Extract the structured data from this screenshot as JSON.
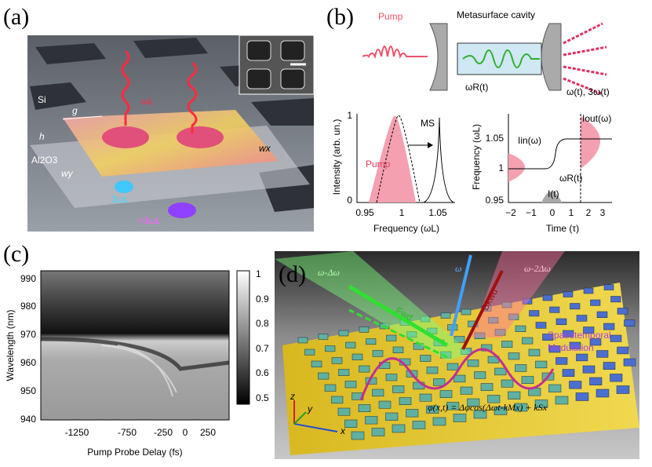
{
  "panels": {
    "a": {
      "label": "(a)",
      "si": "Si",
      "g": "g",
      "omega": "ωL",
      "h": "h",
      "substrate": "Al2O3",
      "wx": "wx",
      "wy": "wy",
      "third": "3ωL",
      "higher": ">3ωL"
    },
    "b": {
      "label": "(b)",
      "pump": "Pump",
      "cavity": "Metasurface cavity",
      "omega_r": "ωR(t)",
      "output": "ω(t), 3ω(t)",
      "left_plot": {
        "ylabel": "Intensity (arb. un.)",
        "xlabel": "Frequency (ωL)",
        "xticks": [
          "0.95",
          "1",
          "1.05"
        ],
        "yticks": [
          "0",
          "1"
        ],
        "ms": "MS",
        "pump": "Pump"
      },
      "right_plot": {
        "ylabel": "Frequency (ωL)",
        "xlabel": "Time (τ)",
        "xticks": [
          "−2",
          "−1",
          "0",
          "1",
          "2",
          "3"
        ],
        "yticks": [
          "1.05",
          "1",
          "0.95"
        ],
        "i_in": "Iin(ω)",
        "i_out": "Iout(ω)",
        "omega_r": "ωR(t)",
        "i_t": "I(t)"
      }
    },
    "c": {
      "label": "(c)",
      "ylabel": "Wavelength (nm)",
      "xlabel": "Pump Probe Delay (fs)",
      "yticks": [
        "990",
        "980",
        "970",
        "960",
        "950",
        "940"
      ],
      "xticks": [
        "-1250",
        "-750",
        "-250",
        "0",
        "250"
      ],
      "colorbar_ticks": [
        "1",
        "0.9",
        "0.8",
        "0.7",
        "0.6",
        "0.5"
      ]
    },
    "d": {
      "label": "(d)",
      "beam_fwd": "ω-Δω",
      "beam_in": "ω",
      "beam_bkwd": "ω-2Δω",
      "fwd": "Fwd",
      "bkwd": "Bkwd",
      "modulation_1": "Spatiotemporal",
      "modulation_2": "Modulation",
      "equation": "φ(x,t) = Δφcos(Δωt-kMx) + kSx",
      "axis_z": "z",
      "axis_y": "y",
      "axis_x": "x"
    }
  }
}
